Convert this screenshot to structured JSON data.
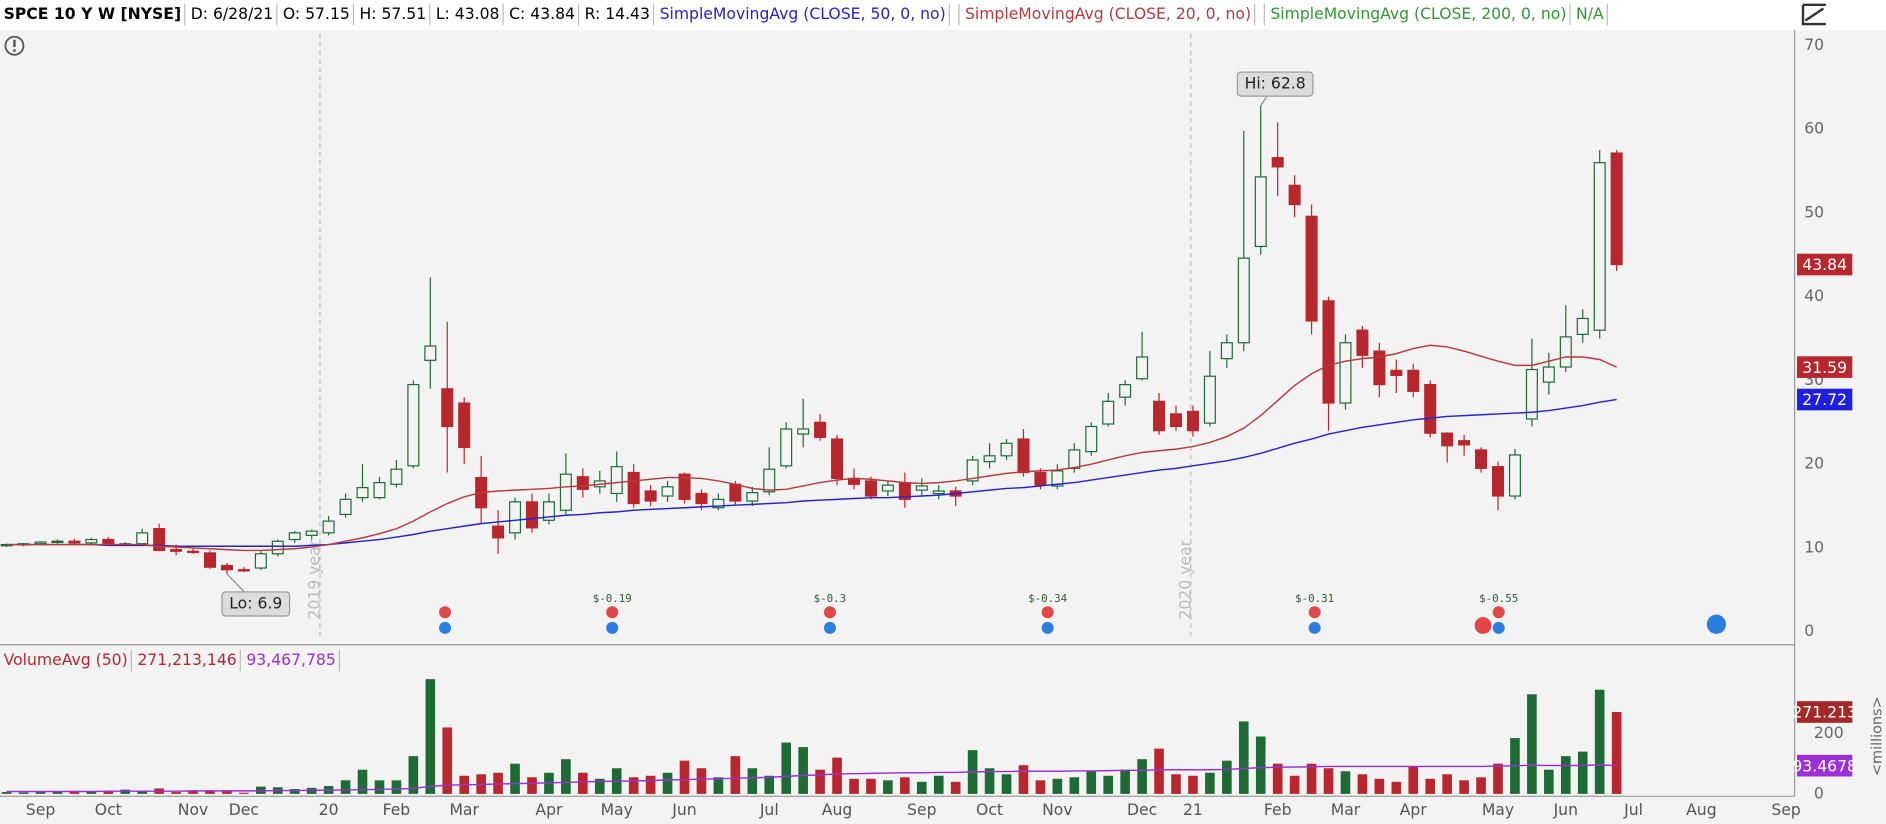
{
  "header": {
    "symbol": "SPCE 10 Y W [NYSE]",
    "fields": [
      "D: 6/28/21",
      "O: 57.15",
      "H: 57.51",
      "L: 43.08",
      "C: 43.84",
      "R: 14.43"
    ]
  },
  "chart_data": {
    "type": "candlestick",
    "categories": [
      null,
      null,
      "Sep",
      null,
      null,
      null,
      "Oct",
      null,
      null,
      null,
      null,
      "Nov",
      null,
      null,
      "Dec",
      null,
      null,
      null,
      null,
      "20",
      null,
      null,
      null,
      "Feb",
      null,
      null,
      null,
      "Mar",
      null,
      null,
      null,
      null,
      "Apr",
      null,
      null,
      null,
      "May",
      null,
      null,
      null,
      "Jun",
      null,
      null,
      null,
      null,
      "Jul",
      null,
      null,
      null,
      "Aug",
      null,
      null,
      null,
      null,
      "Sep",
      null,
      null,
      null,
      "Oct",
      null,
      null,
      null,
      "Nov",
      null,
      null,
      null,
      null,
      "Dec",
      null,
      null,
      "21",
      null,
      null,
      null,
      null,
      "Feb",
      null,
      null,
      null,
      "Mar",
      null,
      null,
      null,
      "Apr",
      null,
      null,
      null,
      null,
      "May",
      null,
      null,
      null,
      "Jun",
      null,
      null,
      null,
      "Jul",
      null,
      null,
      null,
      "Aug",
      null,
      null,
      null,
      null,
      "Sep"
    ],
    "open": [
      10.3,
      10.4,
      10.5,
      10.7,
      10.8,
      10.6,
      11.0,
      10.4,
      10.5,
      12.3,
      9.8,
      9.6,
      9.4,
      7.9,
      7.4,
      7.6,
      9.3,
      11.0,
      11.5,
      11.8,
      14.0,
      16.0,
      16.0,
      17.6,
      19.8,
      32.4,
      29.0,
      27.3,
      18.4,
      12.6,
      11.8,
      15.5,
      13.3,
      14.5,
      18.5,
      17.3,
      16.5,
      19.0,
      16.8,
      16.2,
      18.8,
      16.5,
      14.8,
      17.6,
      15.6,
      16.7,
      19.8,
      23.6,
      25.0,
      23.0,
      18.3,
      18.0,
      16.8,
      17.8,
      16.9,
      16.5,
      16.8,
      18.0,
      20.3,
      21.0,
      23.0,
      19.0,
      17.4,
      19.5,
      21.5,
      24.8,
      28.0,
      30.2,
      27.5,
      26.0,
      26.3,
      24.9,
      32.6,
      34.5,
      46.0,
      56.6,
      53.3,
      49.6,
      39.5,
      27.3,
      36.0,
      33.5,
      31.2,
      31.2,
      29.5,
      23.7,
      22.8,
      21.7,
      19.7,
      16.2,
      25.4,
      29.8,
      31.6,
      35.5,
      36.0,
      57.15,
      null,
      null,
      null,
      null,
      null,
      null,
      null,
      null,
      null,
      null
    ],
    "high": [
      10.5,
      10.6,
      10.8,
      11.0,
      11.1,
      11.2,
      11.3,
      10.7,
      12.3,
      12.9,
      10.4,
      10.0,
      9.7,
      8.2,
      7.7,
      9.6,
      11.0,
      12.0,
      12.2,
      13.8,
      16.5,
      20.0,
      18.5,
      20.5,
      30.0,
      42.3,
      37.0,
      28.0,
      21.0,
      14.5,
      16.0,
      16.5,
      16.5,
      21.3,
      19.5,
      19.2,
      21.5,
      20.0,
      17.5,
      18.0,
      19.0,
      17.0,
      16.5,
      18.0,
      17.3,
      22.0,
      25.0,
      27.8,
      26.0,
      23.5,
      19.5,
      18.5,
      18.0,
      19.0,
      18.3,
      17.5,
      17.3,
      21.0,
      22.5,
      23.0,
      24.2,
      19.5,
      20.0,
      22.5,
      25.0,
      28.5,
      30.0,
      35.8,
      28.5,
      27.0,
      27.0,
      33.5,
      35.5,
      59.8,
      62.8,
      60.8,
      54.5,
      51.0,
      40.0,
      35.5,
      36.5,
      34.5,
      32.5,
      32.0,
      30.0,
      23.8,
      23.5,
      22.0,
      20.3,
      21.8,
      35.0,
      33.3,
      39.0,
      38.5,
      57.5,
      57.51,
      null,
      null,
      null,
      null,
      null,
      null,
      null,
      null,
      null,
      null
    ],
    "low": [
      10.1,
      10.2,
      10.3,
      10.5,
      10.4,
      10.3,
      10.4,
      10.2,
      10.3,
      9.6,
      9.1,
      9.3,
      7.5,
      6.9,
      7.1,
      7.4,
      9.0,
      10.6,
      11.0,
      11.5,
      13.6,
      15.5,
      15.8,
      17.2,
      19.5,
      29.0,
      19.0,
      20.0,
      13.0,
      9.3,
      11.0,
      11.8,
      12.8,
      14.0,
      16.0,
      16.5,
      15.5,
      14.8,
      15.0,
      15.5,
      15.3,
      14.5,
      14.5,
      15.2,
      15.0,
      16.3,
      19.5,
      22.0,
      22.8,
      17.5,
      17.0,
      15.8,
      16.2,
      14.8,
      16.3,
      15.8,
      15.0,
      17.5,
      19.5,
      20.5,
      18.5,
      17.0,
      17.0,
      19.0,
      21.0,
      24.5,
      27.0,
      30.0,
      23.5,
      24.0,
      23.3,
      24.5,
      31.5,
      33.5,
      45.0,
      52.0,
      49.5,
      35.5,
      24.0,
      26.5,
      31.5,
      28.0,
      28.5,
      28.0,
      23.2,
      20.2,
      21.0,
      19.0,
      14.5,
      15.8,
      24.5,
      28.3,
      31.0,
      34.5,
      35.0,
      43.08,
      null,
      null,
      null,
      null,
      null,
      null,
      null,
      null,
      null,
      null
    ],
    "close": [
      10.4,
      10.5,
      10.7,
      10.8,
      10.6,
      11.0,
      10.5,
      10.5,
      11.8,
      9.7,
      9.6,
      9.5,
      7.7,
      7.4,
      7.3,
      9.3,
      10.8,
      11.8,
      12.0,
      13.2,
      15.8,
      17.2,
      17.8,
      19.4,
      29.5,
      34.1,
      24.5,
      22.0,
      14.8,
      11.2,
      15.5,
      12.4,
      15.5,
      18.8,
      17.0,
      18.0,
      19.7,
      15.3,
      15.6,
      17.3,
      15.8,
      15.3,
      15.8,
      15.6,
      16.6,
      19.4,
      24.2,
      24.2,
      23.2,
      18.3,
      17.6,
      16.2,
      17.5,
      15.8,
      17.4,
      16.8,
      16.2,
      20.5,
      21.0,
      22.5,
      19.0,
      17.5,
      19.2,
      21.7,
      24.5,
      27.5,
      29.5,
      32.8,
      24.0,
      24.5,
      24.0,
      30.5,
      34.5,
      44.6,
      54.3,
      55.5,
      51.0,
      37.1,
      27.3,
      34.5,
      33.0,
      29.5,
      30.6,
      28.7,
      23.7,
      22.2,
      22.3,
      19.5,
      16.2,
      21.1,
      31.3,
      31.6,
      35.2,
      37.4,
      56.0,
      43.84,
      null,
      null,
      null,
      null,
      null,
      null,
      null,
      null,
      null,
      null
    ],
    "up_color": "#1e6b35",
    "down_color": "#b8272d",
    "ylim": [
      -0.7,
      71.4
    ],
    "yticks": [
      0,
      10,
      20,
      30,
      40,
      50,
      60,
      70
    ],
    "overlays": [
      {
        "name": "SimpleMovingAvg (CLOSE, 50, 0, no)",
        "color": "#2323d0",
        "tag_color": "#1f1fe0",
        "values": [
          10.4,
          10.4,
          10.4,
          10.4,
          10.4,
          10.4,
          10.3,
          10.3,
          10.3,
          10.3,
          10.2,
          10.2,
          10.2,
          10.2,
          10.2,
          10.2,
          10.2,
          10.2,
          10.3,
          10.4,
          10.6,
          10.8,
          11.0,
          11.3,
          11.6,
          12.0,
          12.3,
          12.6,
          12.9,
          13.1,
          13.3,
          13.5,
          13.7,
          13.9,
          14.0,
          14.2,
          14.3,
          14.5,
          14.6,
          14.7,
          14.8,
          14.9,
          15.0,
          15.1,
          15.2,
          15.3,
          15.4,
          15.6,
          15.7,
          15.8,
          15.9,
          16.0,
          16.0,
          16.1,
          16.2,
          16.3,
          16.5,
          16.7,
          16.9,
          17.1,
          17.2,
          17.4,
          17.6,
          17.8,
          18.1,
          18.4,
          18.7,
          19.0,
          19.3,
          19.5,
          19.8,
          20.1,
          20.4,
          20.8,
          21.3,
          21.9,
          22.5,
          23.0,
          23.6,
          24.0,
          24.4,
          24.7,
          25.0,
          25.3,
          25.5,
          25.7,
          25.8,
          25.9,
          26.0,
          26.1,
          26.2,
          26.4,
          26.7,
          27.0,
          27.4,
          27.72,
          null,
          null,
          null,
          null,
          null,
          null,
          null,
          null,
          null,
          null
        ]
      },
      {
        "name": "SimpleMovingAvg (CLOSE, 20, 0, no)",
        "color": "#b83a3a",
        "tag_color": "#b8272d",
        "values": [
          10.4,
          10.4,
          10.4,
          10.4,
          10.4,
          10.4,
          10.4,
          10.4,
          10.4,
          10.2,
          10.1,
          10.0,
          9.9,
          9.8,
          9.7,
          9.7,
          9.8,
          9.9,
          10.1,
          10.4,
          10.8,
          11.2,
          11.7,
          12.3,
          13.2,
          14.3,
          15.3,
          16.1,
          16.6,
          16.8,
          16.9,
          17.0,
          17.1,
          17.3,
          17.4,
          17.6,
          17.8,
          18.0,
          18.2,
          18.4,
          18.4,
          18.3,
          18.0,
          17.6,
          17.1,
          16.9,
          17.0,
          17.4,
          17.8,
          18.1,
          18.3,
          18.2,
          18.0,
          17.8,
          17.7,
          17.8,
          18.0,
          18.3,
          18.6,
          18.9,
          19.1,
          19.2,
          19.3,
          19.6,
          20.0,
          20.5,
          21.0,
          21.4,
          21.6,
          21.8,
          22.1,
          22.6,
          23.3,
          24.3,
          25.8,
          27.6,
          29.4,
          30.8,
          31.8,
          32.3,
          32.6,
          32.8,
          33.2,
          33.8,
          34.2,
          34.0,
          33.5,
          32.9,
          32.3,
          31.8,
          31.8,
          32.3,
          32.8,
          32.8,
          32.5,
          31.59,
          null,
          null,
          null,
          null,
          null,
          null,
          null,
          null,
          null,
          null
        ]
      },
      {
        "name": "SimpleMovingAvg (CLOSE, 200, 0, no)",
        "color": "#2e9a2e",
        "last_label": "N/A"
      }
    ],
    "annotations": {
      "high": "Hi: 62.8",
      "low": "Lo: 6.9",
      "years": [
        "2019 year",
        "2020 year"
      ],
      "earnings": [
        "$-0.19",
        "$-0.3",
        "$-0.34",
        "$-0.31",
        "$-0.55"
      ]
    },
    "volume": {
      "title": "VolumeAvg (50)",
      "current_label": "271,213,146",
      "last_label": "271.213",
      "unit": "<millions>",
      "ylim": [
        0,
        490
      ],
      "yticks": [
        0,
        200
      ],
      "values": [
        6,
        5,
        7,
        8,
        10,
        8,
        9,
        14,
        9,
        18,
        6,
        10,
        8,
        12,
        4,
        24,
        22,
        16,
        20,
        26,
        45,
        80,
        45,
        45,
        125,
        380,
        220,
        60,
        65,
        70,
        100,
        55,
        70,
        115,
        70,
        50,
        85,
        55,
        60,
        70,
        110,
        85,
        55,
        125,
        85,
        60,
        170,
        155,
        80,
        120,
        50,
        50,
        45,
        55,
        40,
        60,
        40,
        145,
        85,
        65,
        95,
        45,
        50,
        55,
        75,
        60,
        80,
        115,
        150,
        65,
        60,
        70,
        110,
        240,
        190,
        100,
        60,
        100,
        85,
        75,
        65,
        50,
        40,
        90,
        50,
        65,
        45,
        55,
        100,
        185,
        330,
        80,
        125,
        140,
        345,
        271.213146,
        null,
        null,
        null,
        null,
        null,
        null,
        null,
        null,
        null,
        null
      ],
      "avg": {
        "color": "#9b30d9",
        "current_label": "93,467,785",
        "last_label": "93.4678",
        "values": [
          8,
          8,
          8,
          8,
          8,
          8,
          9,
          9,
          9,
          9,
          9,
          10,
          10,
          10,
          10,
          10,
          11,
          11,
          12,
          12,
          13,
          14,
          15,
          16,
          18,
          25,
          29,
          30,
          31,
          33,
          34,
          35,
          37,
          38,
          40,
          41,
          42,
          43,
          44,
          46,
          47,
          49,
          50,
          52,
          53,
          55,
          58,
          61,
          63,
          66,
          67,
          68,
          69,
          70,
          70,
          71,
          71,
          73,
          74,
          74,
          75,
          75,
          75,
          76,
          76,
          77,
          78,
          78,
          80,
          80,
          80,
          80,
          81,
          84,
          87,
          88,
          89,
          90,
          91,
          91,
          91,
          91,
          91,
          91,
          91,
          91,
          91,
          91,
          92,
          93,
          95,
          94,
          94,
          94,
          96,
          93.467785,
          null,
          null,
          null,
          null,
          null,
          null,
          null,
          null,
          null,
          null
        ]
      }
    }
  }
}
